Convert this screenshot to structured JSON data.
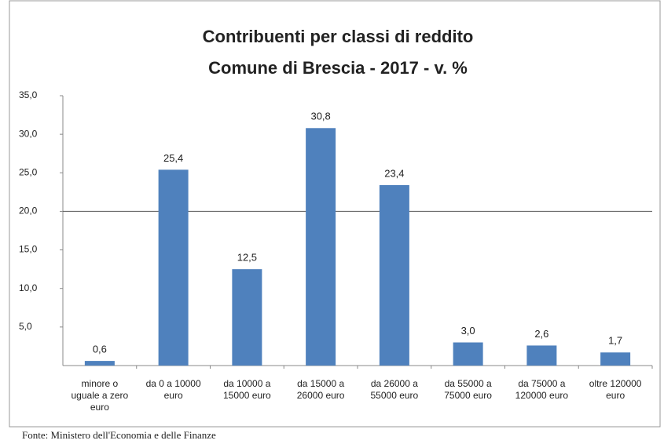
{
  "chart_data": {
    "type": "bar",
    "title": "Contribuenti per classi di reddito",
    "subtitle": "Comune di Brescia - 2017 - v. %",
    "categories": [
      "minore o uguale a zero euro",
      "da 0 a 10000 euro",
      "da 10000 a 15000 euro",
      "da 15000 a 26000 euro",
      "da 26000 a 55000 euro",
      "da 55000 a 75000 euro",
      "da 75000 a 120000 euro",
      "oltre 120000 euro"
    ],
    "values": [
      0.6,
      25.4,
      12.5,
      30.8,
      23.4,
      3.0,
      2.6,
      1.7
    ],
    "value_labels": [
      "0,6",
      "25,4",
      "12,5",
      "30,8",
      "23,4",
      "3,0",
      "2,6",
      "1,7"
    ],
    "color": "#4f81bd",
    "ylim": [
      0,
      35
    ],
    "yticks": [
      {
        "value": 5,
        "label": "5,0"
      },
      {
        "value": 10,
        "label": "10,0"
      },
      {
        "value": 15,
        "label": "15,0"
      },
      {
        "value": 20,
        "label": "20,0"
      },
      {
        "value": 25,
        "label": "25,0"
      },
      {
        "value": 30,
        "label": "30,0"
      },
      {
        "value": 35,
        "label": "35,0"
      }
    ],
    "reference_line": 20,
    "source": "Fonte: Ministero dell'Economia e delle Finanze"
  }
}
